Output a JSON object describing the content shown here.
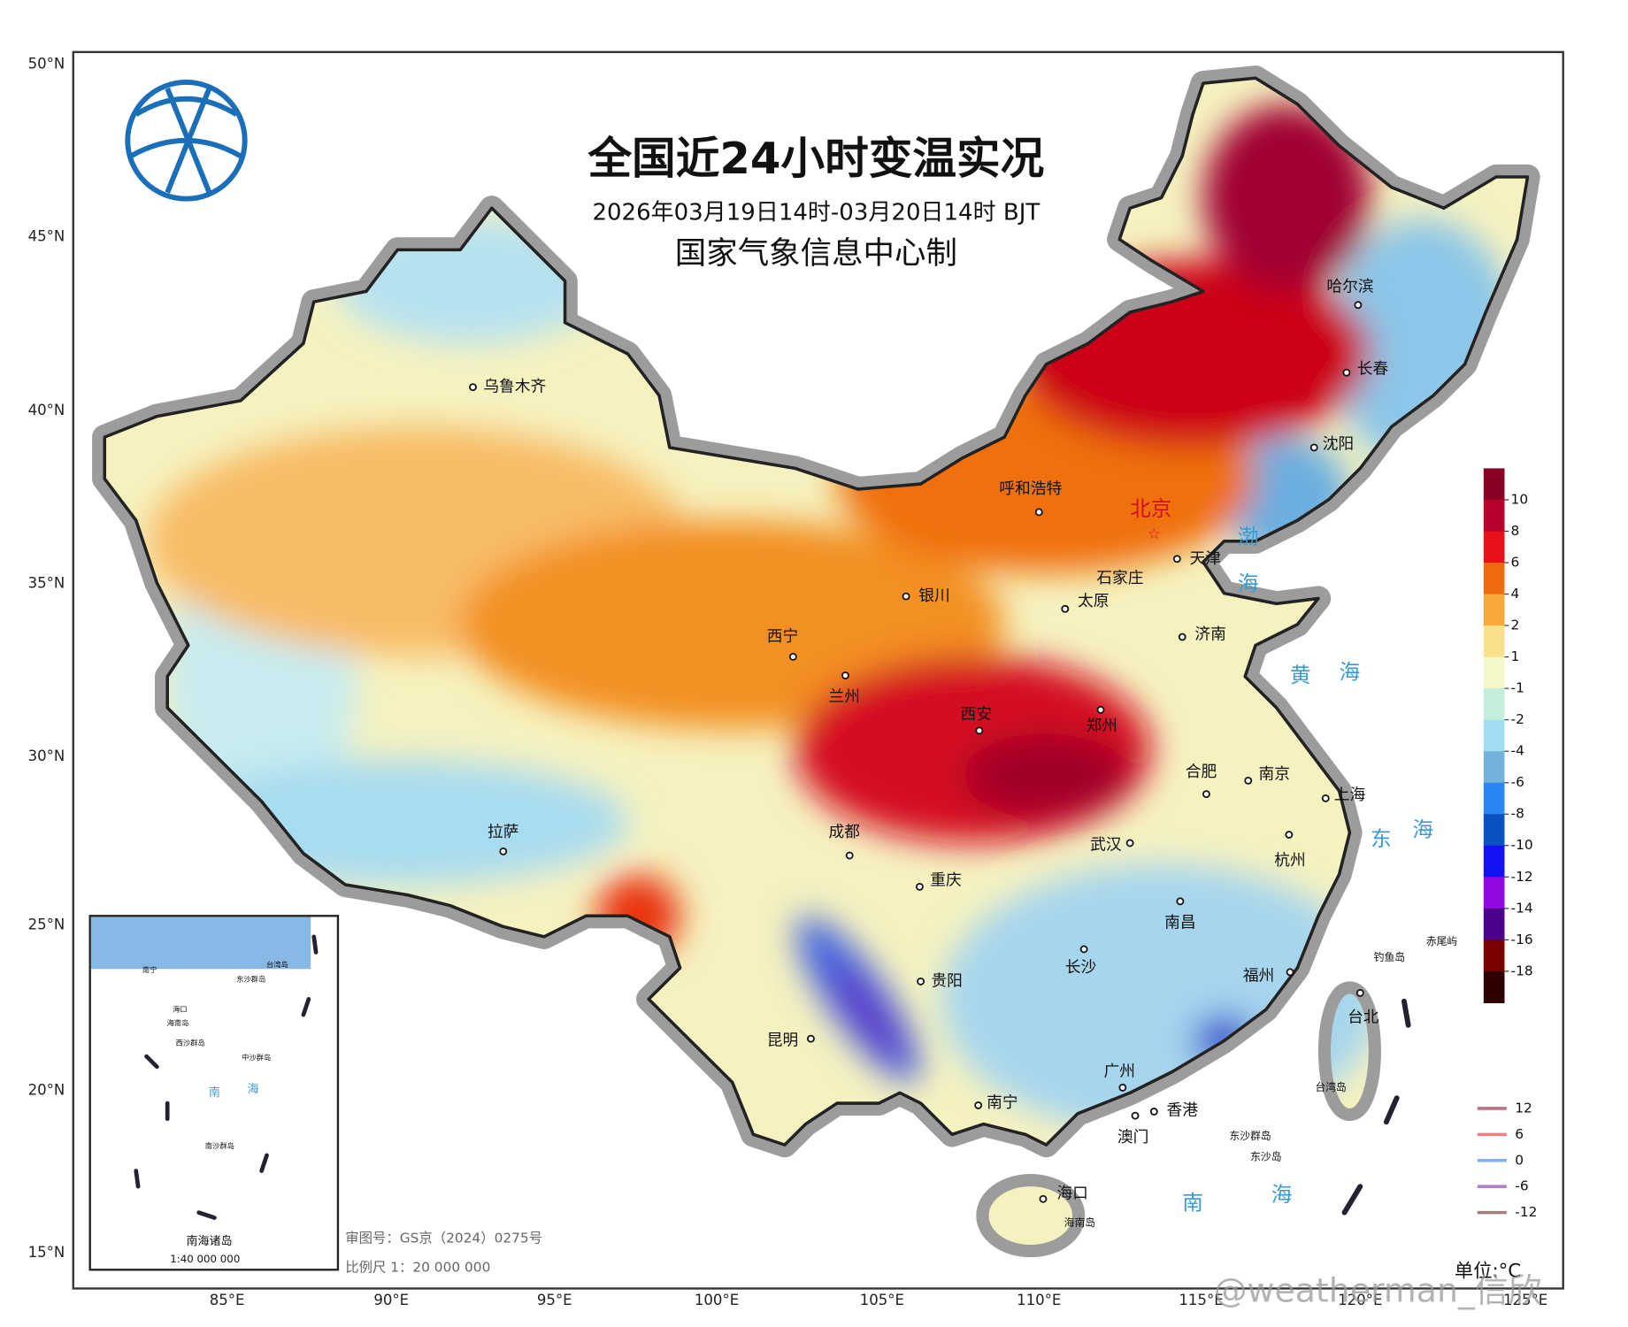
{
  "title": "全国近24小时变温实况",
  "subtitle": "2026年03月19日14时-03月20日14时 BJT",
  "producer": "国家气象信息中心制",
  "lat_labels": [
    "50°N",
    "45°N",
    "40°N",
    "35°N",
    "30°N",
    "25°N",
    "20°N",
    "15°N"
  ],
  "lon_labels": [
    "85°E",
    "90°E",
    "95°E",
    "100°E",
    "105°E",
    "110°E",
    "115°E",
    "120°E",
    "125°E"
  ],
  "capital": "北京",
  "cities": [
    "乌鲁木齐",
    "呼和浩特",
    "天津",
    "石家庄",
    "银川",
    "太原",
    "济南",
    "西宁",
    "兰州",
    "西安",
    "郑州",
    "哈尔滨",
    "长春",
    "沈阳",
    "合肥",
    "南京",
    "上海",
    "拉萨",
    "成都",
    "武汉",
    "杭州",
    "重庆",
    "南昌",
    "长沙",
    "贵阳",
    "福州",
    "台北",
    "昆明",
    "广州",
    "南宁",
    "香港",
    "澳门",
    "海口"
  ],
  "seas": [
    "渤",
    "海",
    "黄",
    "海",
    "东",
    "海",
    "南",
    "海"
  ],
  "islands": [
    "钓鱼岛",
    "赤尾屿",
    "台湾岛",
    "东沙群岛",
    "东沙岛",
    "海南岛"
  ],
  "legend": {
    "ticks": [
      10,
      8,
      6,
      4,
      2,
      1,
      -1,
      -2,
      -4,
      -6,
      -8,
      -10,
      -12,
      -14,
      -16,
      -18
    ],
    "colors": [
      "#8a0024",
      "#b8002c",
      "#e8101a",
      "#f06a10",
      "#f8a838",
      "#fbe08c",
      "#f4f7c8",
      "#c6eedc",
      "#a2dcf2",
      "#74b2de",
      "#2a86f2",
      "#0a52c0",
      "#1212f2",
      "#9208e0",
      "#4c008c",
      "#7a0000",
      "#2e0000"
    ]
  },
  "contour_legend": {
    "levels": [
      12,
      6,
      0,
      -6,
      -12
    ],
    "colors": [
      "#c07080",
      "#f08080",
      "#80b0f0",
      "#b080d0",
      "#a08080"
    ]
  },
  "unit": "单位:°C",
  "inset": {
    "labels": [
      "南宁",
      "海口",
      "海南岛",
      "东沙群岛",
      "台湾岛",
      "西沙群岛",
      "中沙群岛",
      "南",
      "海",
      "南沙群岛"
    ],
    "title": "南海诸岛",
    "scale": "1:40 000 000"
  },
  "approval": "审图号：GS京（2024）0275号",
  "scale": "比例尺 1：20 000 000",
  "watermark": "@weatherman_信欣"
}
